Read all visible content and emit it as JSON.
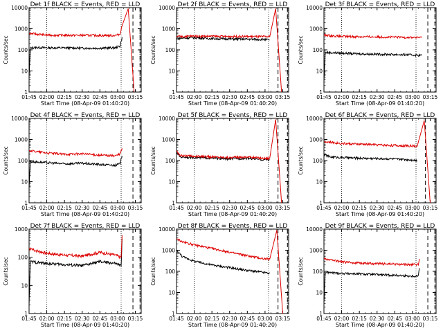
{
  "figure": {
    "xlabel": "Start Time (08-Apr-09 01:40:20)",
    "ylabel": "Counts/sec",
    "time_ticks": [
      "01:45",
      "02:00",
      "02:15",
      "02:30",
      "02:45",
      "03:00",
      "03:15"
    ],
    "y_ticks": [
      "1",
      "10",
      "100",
      "1000",
      "10000"
    ],
    "y_scale": "log",
    "colors": {
      "events": "#000000",
      "lld": "#dd0000",
      "axes": "#000000"
    }
  },
  "chart_data": [
    {
      "type": "line",
      "title": "Det 1f BLACK = Events, RED = LLD",
      "x_range_min": [
        105,
        200
      ],
      "ylim": [
        1,
        10000
      ],
      "vlines_dotted": [
        120,
        183
      ],
      "vlines_dashed": [
        193,
        199
      ],
      "flare": {
        "start": 184,
        "peak": 189,
        "end": 194,
        "peak_counts": 9000
      },
      "series": [
        {
          "name": "Events",
          "values": [
            {
              "t": 105,
              "y": 5
            },
            {
              "t": 106,
              "y": 120
            },
            {
              "t": 110,
              "y": 130
            },
            {
              "t": 120,
              "y": 125
            },
            {
              "t": 135,
              "y": 125
            },
            {
              "t": 150,
              "y": 120
            },
            {
              "t": 165,
              "y": 120
            },
            {
              "t": 178,
              "y": 125
            },
            {
              "t": 182,
              "y": 150
            },
            {
              "t": 184,
              "y": 400
            }
          ]
        },
        {
          "name": "LLD",
          "values": [
            {
              "t": 105,
              "y": 600
            },
            {
              "t": 120,
              "y": 500
            },
            {
              "t": 135,
              "y": 490
            },
            {
              "t": 150,
              "y": 490
            },
            {
              "t": 165,
              "y": 480
            },
            {
              "t": 178,
              "y": 480
            },
            {
              "t": 182,
              "y": 550
            },
            {
              "t": 184,
              "y": 1500
            }
          ]
        }
      ]
    },
    {
      "type": "line",
      "title": "Det 2f BLACK = Events, RED = LLD",
      "x_range_min": [
        105,
        200
      ],
      "ylim": [
        1,
        10000
      ],
      "vlines_dotted": [
        120,
        183
      ],
      "vlines_dashed": [
        191,
        199
      ],
      "flare": {
        "start": 184,
        "peak": 189,
        "end": 194,
        "peak_counts": 9000
      },
      "series": [
        {
          "name": "Events",
          "values": [
            {
              "t": 105,
              "y": 350
            },
            {
              "t": 120,
              "y": 380
            },
            {
              "t": 135,
              "y": 340
            },
            {
              "t": 150,
              "y": 330
            },
            {
              "t": 165,
              "y": 320
            },
            {
              "t": 178,
              "y": 310
            },
            {
              "t": 184,
              "y": 300
            }
          ]
        },
        {
          "name": "LLD",
          "values": [
            {
              "t": 105,
              "y": 420
            },
            {
              "t": 120,
              "y": 450
            },
            {
              "t": 135,
              "y": 440
            },
            {
              "t": 150,
              "y": 430
            },
            {
              "t": 165,
              "y": 430
            },
            {
              "t": 178,
              "y": 420
            },
            {
              "t": 184,
              "y": 420
            }
          ]
        }
      ]
    },
    {
      "type": "line",
      "title": "Det 3f BLACK = Events, RED = LLD",
      "x_range_min": [
        105,
        200
      ],
      "ylim": [
        1,
        10000
      ],
      "vlines_dotted": [
        120,
        183
      ],
      "vlines_dashed": [
        193,
        199
      ],
      "series": [
        {
          "name": "Events",
          "values": [
            {
              "t": 105,
              "y": 3
            },
            {
              "t": 106,
              "y": 75
            },
            {
              "t": 120,
              "y": 70
            },
            {
              "t": 135,
              "y": 65
            },
            {
              "t": 150,
              "y": 62
            },
            {
              "t": 165,
              "y": 60
            },
            {
              "t": 178,
              "y": 58
            },
            {
              "t": 188,
              "y": 55
            }
          ]
        },
        {
          "name": "LLD",
          "values": [
            {
              "t": 105,
              "y": 500
            },
            {
              "t": 120,
              "y": 430
            },
            {
              "t": 135,
              "y": 420
            },
            {
              "t": 150,
              "y": 410
            },
            {
              "t": 165,
              "y": 400
            },
            {
              "t": 178,
              "y": 390
            },
            {
              "t": 188,
              "y": 380
            }
          ]
        }
      ]
    },
    {
      "type": "line",
      "title": "Det 4f BLACK = Events, RED = LLD",
      "x_range_min": [
        105,
        200
      ],
      "ylim": [
        1,
        10000
      ],
      "vlines_dotted": [
        120,
        183
      ],
      "vlines_dashed": [
        193,
        199
      ],
      "series": [
        {
          "name": "Events",
          "values": [
            {
              "t": 105,
              "y": 5
            },
            {
              "t": 106,
              "y": 90
            },
            {
              "t": 120,
              "y": 80
            },
            {
              "t": 135,
              "y": 70
            },
            {
              "t": 150,
              "y": 75
            },
            {
              "t": 165,
              "y": 65
            },
            {
              "t": 178,
              "y": 60
            },
            {
              "t": 182,
              "y": 70
            },
            {
              "t": 184,
              "y": 200
            }
          ]
        },
        {
          "name": "LLD",
          "values": [
            {
              "t": 105,
              "y": 300
            },
            {
              "t": 120,
              "y": 230
            },
            {
              "t": 135,
              "y": 200
            },
            {
              "t": 150,
              "y": 210
            },
            {
              "t": 165,
              "y": 180
            },
            {
              "t": 178,
              "y": 170
            },
            {
              "t": 182,
              "y": 200
            },
            {
              "t": 184,
              "y": 400
            }
          ]
        }
      ]
    },
    {
      "type": "line",
      "title": "Det 5f BLACK = Events, RED = LLD",
      "x_range_min": [
        105,
        200
      ],
      "ylim": [
        1,
        10000
      ],
      "vlines_dotted": [
        120,
        183
      ],
      "vlines_dashed": [
        191,
        199
      ],
      "flare": {
        "start": 184,
        "peak": 189,
        "end": 194,
        "peak_counts": 9000
      },
      "series": [
        {
          "name": "Events",
          "values": [
            {
              "t": 105,
              "y": 250
            },
            {
              "t": 108,
              "y": 150
            },
            {
              "t": 120,
              "y": 140
            },
            {
              "t": 135,
              "y": 130
            },
            {
              "t": 150,
              "y": 120
            },
            {
              "t": 165,
              "y": 130
            },
            {
              "t": 178,
              "y": 110
            },
            {
              "t": 184,
              "y": 110
            }
          ]
        },
        {
          "name": "LLD",
          "values": [
            {
              "t": 105,
              "y": 300
            },
            {
              "t": 108,
              "y": 170
            },
            {
              "t": 120,
              "y": 160
            },
            {
              "t": 135,
              "y": 150
            },
            {
              "t": 150,
              "y": 140
            },
            {
              "t": 165,
              "y": 150
            },
            {
              "t": 178,
              "y": 130
            },
            {
              "t": 184,
              "y": 130
            }
          ]
        }
      ]
    },
    {
      "type": "line",
      "title": "Det 6f BLACK = Events, RED = LLD",
      "x_range_min": [
        105,
        200
      ],
      "ylim": [
        1,
        10000
      ],
      "vlines_dotted": [
        120,
        183
      ],
      "vlines_dashed": [
        191,
        199
      ],
      "flare": {
        "start": 184,
        "peak": 190,
        "end": 195,
        "peak_counts": 8000
      },
      "series": [
        {
          "name": "Events",
          "values": [
            {
              "t": 105,
              "y": 200
            },
            {
              "t": 110,
              "y": 150
            },
            {
              "t": 120,
              "y": 140
            },
            {
              "t": 135,
              "y": 130
            },
            {
              "t": 150,
              "y": 125
            },
            {
              "t": 165,
              "y": 120
            },
            {
              "t": 178,
              "y": 110
            },
            {
              "t": 184,
              "y": 100
            }
          ]
        },
        {
          "name": "LLD",
          "values": [
            {
              "t": 105,
              "y": 800
            },
            {
              "t": 120,
              "y": 650
            },
            {
              "t": 135,
              "y": 600
            },
            {
              "t": 150,
              "y": 560
            },
            {
              "t": 165,
              "y": 520
            },
            {
              "t": 178,
              "y": 500
            },
            {
              "t": 184,
              "y": 480
            }
          ]
        }
      ]
    },
    {
      "type": "line",
      "title": "Det 7f BLACK = Events, RED = LLD",
      "x_range_min": [
        105,
        200
      ],
      "ylim": [
        1,
        1000
      ],
      "vlines_dotted": [
        120,
        183
      ],
      "vlines_dashed": [
        193,
        199
      ],
      "series": [
        {
          "name": "Events",
          "values": [
            {
              "t": 105,
              "y": 2
            },
            {
              "t": 106,
              "y": 70
            },
            {
              "t": 120,
              "y": 60
            },
            {
              "t": 135,
              "y": 55
            },
            {
              "t": 150,
              "y": 50
            },
            {
              "t": 165,
              "y": 70
            },
            {
              "t": 178,
              "y": 60
            },
            {
              "t": 183,
              "y": 50
            },
            {
              "t": 184,
              "y": 800
            }
          ]
        },
        {
          "name": "LLD",
          "values": [
            {
              "t": 105,
              "y": 200
            },
            {
              "t": 120,
              "y": 140
            },
            {
              "t": 135,
              "y": 120
            },
            {
              "t": 150,
              "y": 110
            },
            {
              "t": 165,
              "y": 150
            },
            {
              "t": 178,
              "y": 120
            },
            {
              "t": 183,
              "y": 100
            },
            {
              "t": 184,
              "y": 900
            }
          ]
        }
      ]
    },
    {
      "type": "line",
      "title": "Det 8f BLACK = Events, RED = LLD",
      "x_range_min": [
        105,
        200
      ],
      "ylim": [
        1,
        10000
      ],
      "vlines_dotted": [
        120,
        183
      ],
      "vlines_dashed": [
        191,
        199
      ],
      "flare": {
        "start": 184,
        "peak": 190,
        "end": 195,
        "peak_counts": 9000
      },
      "series": [
        {
          "name": "Events",
          "values": [
            {
              "t": 105,
              "y": 1000
            },
            {
              "t": 110,
              "y": 500
            },
            {
              "t": 120,
              "y": 300
            },
            {
              "t": 135,
              "y": 200
            },
            {
              "t": 150,
              "y": 150
            },
            {
              "t": 165,
              "y": 110
            },
            {
              "t": 178,
              "y": 90
            },
            {
              "t": 184,
              "y": 80
            }
          ]
        },
        {
          "name": "LLD",
          "values": [
            {
              "t": 105,
              "y": 3500
            },
            {
              "t": 110,
              "y": 2500
            },
            {
              "t": 120,
              "y": 1800
            },
            {
              "t": 135,
              "y": 1200
            },
            {
              "t": 150,
              "y": 800
            },
            {
              "t": 165,
              "y": 550
            },
            {
              "t": 178,
              "y": 400
            },
            {
              "t": 184,
              "y": 380
            }
          ]
        }
      ]
    },
    {
      "type": "line",
      "title": "Det 9f BLACK = Events, RED = LLD",
      "x_range_min": [
        105,
        200
      ],
      "ylim": [
        1,
        10000
      ],
      "vlines_dotted": [
        120,
        183
      ],
      "vlines_dashed": [
        193,
        199
      ],
      "series": [
        {
          "name": "Events",
          "values": [
            {
              "t": 105,
              "y": 3
            },
            {
              "t": 106,
              "y": 90
            },
            {
              "t": 120,
              "y": 80
            },
            {
              "t": 135,
              "y": 75
            },
            {
              "t": 150,
              "y": 70
            },
            {
              "t": 165,
              "y": 65
            },
            {
              "t": 178,
              "y": 60
            },
            {
              "t": 185,
              "y": 60
            },
            {
              "t": 186,
              "y": 200
            }
          ]
        },
        {
          "name": "LLD",
          "values": [
            {
              "t": 105,
              "y": 400
            },
            {
              "t": 120,
              "y": 280
            },
            {
              "t": 135,
              "y": 250
            },
            {
              "t": 150,
              "y": 230
            },
            {
              "t": 165,
              "y": 220
            },
            {
              "t": 178,
              "y": 210
            },
            {
              "t": 185,
              "y": 210
            },
            {
              "t": 186,
              "y": 500
            }
          ]
        }
      ]
    }
  ]
}
